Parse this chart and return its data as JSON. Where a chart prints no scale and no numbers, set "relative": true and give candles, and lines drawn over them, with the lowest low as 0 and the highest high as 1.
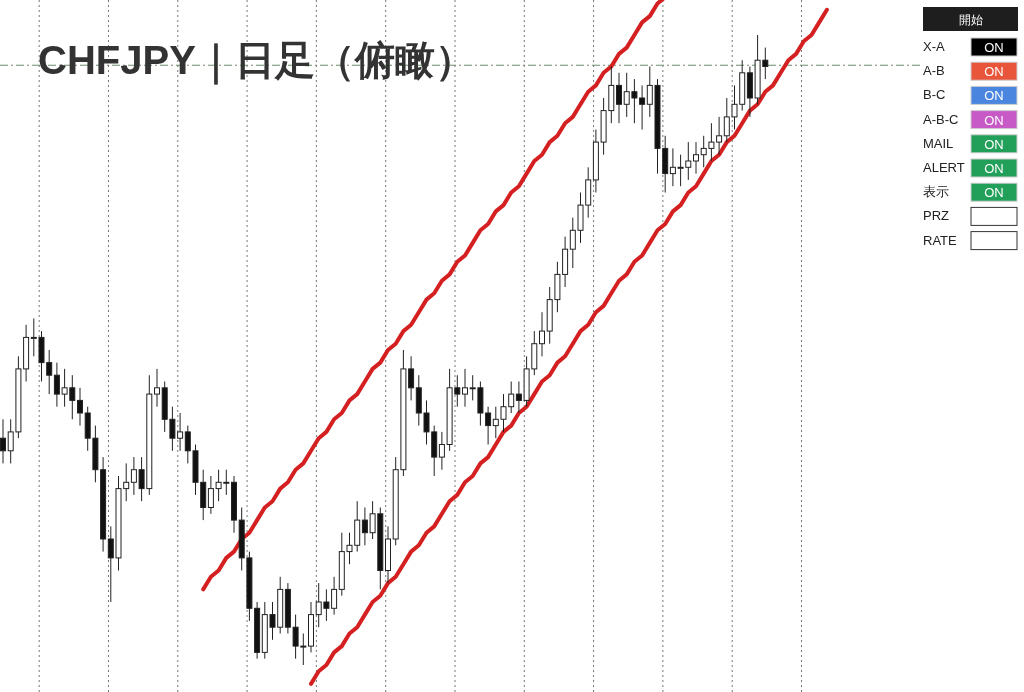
{
  "chart_data": [
    {
      "type": "candlestick",
      "title": "CHFJPY｜日足（俯瞰）",
      "relative": true,
      "categories": [
        null,
        null,
        null,
        null,
        null,
        null,
        null,
        null,
        null,
        null,
        null,
        null,
        null,
        null,
        null,
        null,
        null,
        null,
        null,
        null,
        null,
        null,
        null,
        null,
        null,
        null,
        null,
        null,
        null,
        null,
        null,
        null,
        null,
        null,
        null,
        null,
        null,
        null,
        null,
        null,
        null,
        null,
        null,
        null,
        null,
        null,
        null,
        null,
        null,
        null,
        null,
        null,
        null,
        null,
        null,
        null,
        null,
        null,
        null,
        null,
        null,
        null,
        null,
        null,
        null,
        null,
        null,
        null,
        null,
        null,
        null,
        null,
        null,
        null,
        null,
        null,
        null,
        null,
        null,
        null,
        null,
        null,
        null,
        null,
        null,
        null,
        null,
        null,
        null,
        null,
        null,
        null,
        null,
        null,
        null,
        null,
        null,
        null,
        null,
        null,
        null,
        null,
        null,
        null,
        null,
        null,
        null,
        null
      ],
      "ohlc": [
        [
          0.36,
          0.39,
          0.32,
          0.34
        ],
        [
          0.34,
          0.39,
          0.32,
          0.37
        ],
        [
          0.37,
          0.49,
          0.36,
          0.47
        ],
        [
          0.47,
          0.54,
          0.45,
          0.52
        ],
        [
          0.52,
          0.55,
          0.49,
          0.52
        ],
        [
          0.52,
          0.53,
          0.45,
          0.48
        ],
        [
          0.48,
          0.5,
          0.43,
          0.46
        ],
        [
          0.46,
          0.48,
          0.41,
          0.43
        ],
        [
          0.43,
          0.47,
          0.41,
          0.44
        ],
        [
          0.44,
          0.46,
          0.39,
          0.42
        ],
        [
          0.42,
          0.44,
          0.38,
          0.4
        ],
        [
          0.4,
          0.41,
          0.34,
          0.36
        ],
        [
          0.36,
          0.38,
          0.29,
          0.31
        ],
        [
          0.31,
          0.33,
          0.18,
          0.2
        ],
        [
          0.2,
          0.22,
          0.1,
          0.17
        ],
        [
          0.17,
          0.3,
          0.15,
          0.28
        ],
        [
          0.28,
          0.32,
          0.26,
          0.29
        ],
        [
          0.29,
          0.33,
          0.27,
          0.31
        ],
        [
          0.31,
          0.33,
          0.26,
          0.28
        ],
        [
          0.28,
          0.46,
          0.27,
          0.43
        ],
        [
          0.43,
          0.47,
          0.41,
          0.44
        ],
        [
          0.44,
          0.45,
          0.37,
          0.39
        ],
        [
          0.39,
          0.41,
          0.34,
          0.36
        ],
        [
          0.36,
          0.4,
          0.34,
          0.37
        ],
        [
          0.37,
          0.38,
          0.32,
          0.34
        ],
        [
          0.34,
          0.35,
          0.27,
          0.29
        ],
        [
          0.29,
          0.31,
          0.23,
          0.25
        ],
        [
          0.25,
          0.3,
          0.24,
          0.28
        ],
        [
          0.28,
          0.31,
          0.26,
          0.29
        ],
        [
          0.29,
          0.31,
          0.27,
          0.29
        ],
        [
          0.29,
          0.3,
          0.21,
          0.23
        ],
        [
          0.23,
          0.25,
          0.15,
          0.17
        ],
        [
          0.17,
          0.18,
          0.07,
          0.09
        ],
        [
          0.09,
          0.1,
          0.01,
          0.02
        ],
        [
          0.02,
          0.1,
          0.01,
          0.08
        ],
        [
          0.08,
          0.1,
          0.04,
          0.06
        ],
        [
          0.06,
          0.14,
          0.05,
          0.12
        ],
        [
          0.12,
          0.13,
          0.05,
          0.06
        ],
        [
          0.06,
          0.08,
          0.01,
          0.03
        ],
        [
          0.03,
          0.05,
          0.0,
          0.03
        ],
        [
          0.03,
          0.1,
          0.02,
          0.08
        ],
        [
          0.08,
          0.13,
          0.06,
          0.1
        ],
        [
          0.1,
          0.12,
          0.07,
          0.09
        ],
        [
          0.09,
          0.14,
          0.08,
          0.12
        ],
        [
          0.12,
          0.21,
          0.11,
          0.18
        ],
        [
          0.18,
          0.21,
          0.16,
          0.19
        ],
        [
          0.19,
          0.26,
          0.18,
          0.23
        ],
        [
          0.23,
          0.25,
          0.19,
          0.21
        ],
        [
          0.21,
          0.26,
          0.2,
          0.24
        ],
        [
          0.24,
          0.25,
          0.12,
          0.15
        ],
        [
          0.15,
          0.22,
          0.13,
          0.2
        ],
        [
          0.2,
          0.33,
          0.19,
          0.31
        ],
        [
          0.31,
          0.5,
          0.3,
          0.47
        ],
        [
          0.47,
          0.49,
          0.42,
          0.44
        ],
        [
          0.44,
          0.46,
          0.38,
          0.4
        ],
        [
          0.4,
          0.42,
          0.35,
          0.37
        ],
        [
          0.37,
          0.38,
          0.3,
          0.33
        ],
        [
          0.33,
          0.37,
          0.31,
          0.35
        ],
        [
          0.35,
          0.47,
          0.34,
          0.44
        ],
        [
          0.44,
          0.46,
          0.41,
          0.43
        ],
        [
          0.43,
          0.47,
          0.41,
          0.44
        ],
        [
          0.44,
          0.46,
          0.42,
          0.44
        ],
        [
          0.44,
          0.45,
          0.38,
          0.4
        ],
        [
          0.4,
          0.41,
          0.35,
          0.38
        ],
        [
          0.38,
          0.41,
          0.36,
          0.39
        ],
        [
          0.39,
          0.43,
          0.37,
          0.41
        ],
        [
          0.41,
          0.45,
          0.4,
          0.43
        ],
        [
          0.43,
          0.45,
          0.4,
          0.42
        ],
        [
          0.42,
          0.49,
          0.41,
          0.47
        ],
        [
          0.47,
          0.53,
          0.46,
          0.51
        ],
        [
          0.51,
          0.56,
          0.49,
          0.53
        ],
        [
          0.53,
          0.6,
          0.51,
          0.58
        ],
        [
          0.58,
          0.64,
          0.56,
          0.62
        ],
        [
          0.62,
          0.68,
          0.6,
          0.66
        ],
        [
          0.66,
          0.71,
          0.63,
          0.69
        ],
        [
          0.69,
          0.75,
          0.67,
          0.73
        ],
        [
          0.73,
          0.79,
          0.71,
          0.77
        ],
        [
          0.77,
          0.85,
          0.75,
          0.83
        ],
        [
          0.83,
          0.9,
          0.81,
          0.88
        ],
        [
          0.88,
          0.95,
          0.86,
          0.92
        ],
        [
          0.92,
          0.94,
          0.86,
          0.89
        ],
        [
          0.89,
          0.94,
          0.87,
          0.91
        ],
        [
          0.91,
          0.93,
          0.86,
          0.9
        ],
        [
          0.9,
          0.92,
          0.85,
          0.89
        ],
        [
          0.89,
          0.95,
          0.87,
          0.92
        ],
        [
          0.92,
          0.93,
          0.78,
          0.82
        ],
        [
          0.82,
          0.84,
          0.75,
          0.78
        ],
        [
          0.78,
          0.82,
          0.76,
          0.79
        ],
        [
          0.79,
          0.81,
          0.76,
          0.79
        ],
        [
          0.79,
          0.83,
          0.77,
          0.8
        ],
        [
          0.8,
          0.83,
          0.78,
          0.81
        ],
        [
          0.81,
          0.84,
          0.79,
          0.82
        ],
        [
          0.82,
          0.86,
          0.8,
          0.83
        ],
        [
          0.83,
          0.87,
          0.81,
          0.84
        ],
        [
          0.84,
          0.9,
          0.83,
          0.87
        ],
        [
          0.87,
          0.92,
          0.85,
          0.89
        ],
        [
          0.89,
          0.96,
          0.88,
          0.94
        ],
        [
          0.94,
          0.95,
          0.87,
          0.9
        ],
        [
          0.9,
          1.0,
          0.89,
          0.96
        ],
        [
          0.96,
          0.98,
          0.93,
          0.95
        ],
        null,
        null,
        null,
        null,
        null,
        null,
        null,
        null
      ],
      "series": [
        {
          "type": "line",
          "color": "#d42020",
          "values": [
            null,
            null,
            null,
            null,
            null,
            null,
            null,
            null,
            null,
            null,
            null,
            null,
            null,
            null,
            null,
            null,
            null,
            null,
            null,
            null,
            null,
            null,
            null,
            null,
            null,
            null,
            0.12,
            0.14,
            0.15,
            0.17,
            0.18,
            0.2,
            0.21,
            0.23,
            0.25,
            0.26,
            0.28,
            0.29,
            0.31,
            0.32,
            0.34,
            0.36,
            0.37,
            0.39,
            0.4,
            0.42,
            0.43,
            0.45,
            0.47,
            0.48,
            0.5,
            0.51,
            0.53,
            0.54,
            0.56,
            0.58,
            0.59,
            0.61,
            0.62,
            0.64,
            0.65,
            0.67,
            0.69,
            0.7,
            0.72,
            0.73,
            0.75,
            0.76,
            0.78,
            0.8,
            0.81,
            0.83,
            0.84,
            0.86,
            0.87,
            0.89,
            0.91,
            0.92,
            0.94,
            0.95,
            0.97,
            0.98,
            1.0,
            1.02,
            1.03,
            1.05,
            1.06,
            null,
            null,
            null,
            null,
            null,
            null,
            null,
            null,
            null,
            null,
            null,
            null,
            null,
            null,
            null,
            null,
            null,
            null,
            null,
            null,
            null
          ]
        },
        {
          "type": "line",
          "color": "#d42020",
          "values": [
            null,
            null,
            null,
            null,
            null,
            null,
            null,
            null,
            null,
            null,
            null,
            null,
            null,
            null,
            null,
            null,
            null,
            null,
            null,
            null,
            null,
            null,
            null,
            null,
            null,
            null,
            null,
            null,
            null,
            null,
            null,
            null,
            null,
            null,
            null,
            null,
            null,
            null,
            null,
            null,
            -0.03,
            -0.01,
            0.0,
            0.02,
            0.03,
            0.05,
            0.06,
            0.08,
            0.1,
            0.11,
            0.13,
            0.14,
            0.16,
            0.18,
            0.19,
            0.21,
            0.22,
            0.24,
            0.26,
            0.27,
            0.29,
            0.3,
            0.32,
            0.33,
            0.35,
            0.37,
            0.38,
            0.4,
            0.41,
            0.43,
            0.45,
            0.46,
            0.48,
            0.49,
            0.51,
            0.53,
            0.54,
            0.56,
            0.57,
            0.59,
            0.61,
            0.62,
            0.64,
            0.65,
            0.67,
            0.69,
            0.7,
            0.72,
            0.73,
            0.75,
            0.76,
            0.78,
            0.8,
            0.81,
            0.83,
            0.84,
            0.86,
            0.88,
            0.89,
            0.91,
            0.92,
            0.94,
            0.96,
            0.97,
            0.99,
            1.0,
            1.02,
            1.04
          ]
        }
      ],
      "ref_lines": [
        {
          "axis": "y",
          "value": 0.952,
          "color": "#6a8a6a",
          "line_style": "dashdot"
        }
      ]
    },
    {
      "type": "other",
      "title": "開始",
      "categories": [
        "X-A",
        "A-B",
        "B-C",
        "A-B-C",
        "MAIL",
        "ALERT",
        "表示",
        "PRZ",
        "RATE"
      ],
      "value_labels": [
        "ON",
        "ON",
        "ON",
        "ON",
        "ON",
        "ON",
        "ON",
        null,
        null
      ],
      "colors": [
        "#000000",
        "#e8553a",
        "#4a86e0",
        "#c85ac8",
        "#22a05a",
        "#22a05a",
        "#22a05a",
        null,
        null
      ]
    }
  ]
}
